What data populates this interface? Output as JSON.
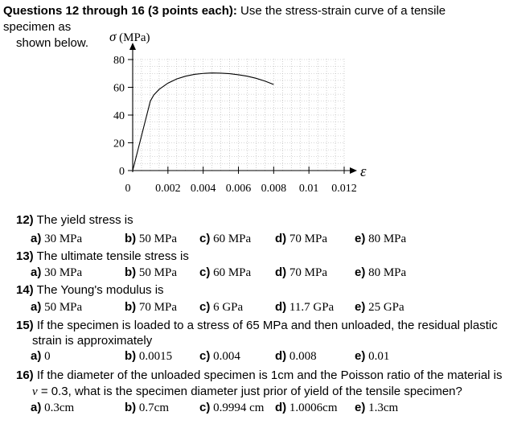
{
  "intro": {
    "bold": "Questions 12 through 16 (3 points each):",
    "rest": " Use the stress-strain curve of a tensile specimen as",
    "line2": "shown below."
  },
  "chart_data": {
    "type": "line",
    "title": "",
    "ylabel": "σ (MPa)",
    "xlabel": "ε",
    "xlim": [
      0,
      0.012
    ],
    "ylim": [
      0,
      80
    ],
    "x_ticks": [
      0,
      0.002,
      0.004,
      0.006,
      0.008,
      0.01,
      0.012
    ],
    "x_tick_labels": [
      "0",
      "0.002",
      "0.004",
      "0.006",
      "0.008",
      "0.01",
      "0.012"
    ],
    "y_ticks": [
      0,
      20,
      40,
      60,
      80
    ],
    "y_tick_labels": [
      "0",
      "20",
      "40",
      "60",
      "80"
    ],
    "grid": true,
    "series": [
      {
        "points": [
          [
            0,
            0
          ],
          [
            0.001,
            50
          ],
          [
            0.0012,
            54.5
          ],
          [
            0.0015,
            58.5
          ],
          [
            0.002,
            63
          ],
          [
            0.0025,
            66
          ],
          [
            0.003,
            68
          ],
          [
            0.0035,
            69.3
          ],
          [
            0.004,
            70
          ],
          [
            0.0045,
            70.3
          ],
          [
            0.005,
            70.2
          ],
          [
            0.0055,
            69.8
          ],
          [
            0.006,
            69
          ],
          [
            0.0065,
            68
          ],
          [
            0.007,
            66.5
          ],
          [
            0.0075,
            64.5
          ],
          [
            0.008,
            62
          ]
        ]
      }
    ]
  },
  "questions": [
    {
      "num": "12)",
      "text": " The yield stress is",
      "options": [
        {
          "label": "a)",
          "value": " 30 MPa"
        },
        {
          "label": "b)",
          "value": " 50 MPa"
        },
        {
          "label": "c)",
          "value": " 60 MPa"
        },
        {
          "label": "d)",
          "value": " 70 MPa"
        },
        {
          "label": "e)",
          "value": " 80 MPa"
        }
      ]
    },
    {
      "num": "13)",
      "text": " The ultimate tensile stress is",
      "options": [
        {
          "label": "a)",
          "value": " 30 MPa"
        },
        {
          "label": "b)",
          "value": " 50 MPa"
        },
        {
          "label": "c)",
          "value": " 60 MPa"
        },
        {
          "label": "d)",
          "value": " 70 MPa"
        },
        {
          "label": "e)",
          "value": " 80 MPa"
        }
      ]
    },
    {
      "num": "14)",
      "text": " The Young's modulus is",
      "options": [
        {
          "label": "a)",
          "value": " 50 MPa"
        },
        {
          "label": "b)",
          "value": " 70 MPa"
        },
        {
          "label": "c)",
          "value": " 6 GPa"
        },
        {
          "label": "d)",
          "value": " 11.7 GPa"
        },
        {
          "label": "e)",
          "value": " 25 GPa"
        }
      ]
    },
    {
      "num": "15)",
      "text": " If the specimen is loaded to a stress of 65 MPa and then unloaded, the residual plastic",
      "text2": "strain is approximately",
      "options": [
        {
          "label": "a)",
          "value": " 0"
        },
        {
          "label": "b)",
          "value": " 0.0015"
        },
        {
          "label": "c)",
          "value": " 0.004"
        },
        {
          "label": "d)",
          "value": " 0.008"
        },
        {
          "label": "e)",
          "value": " 0.01"
        }
      ]
    },
    {
      "num": "16)",
      "text": " If the diameter of the unloaded specimen is 1cm and the Poisson ratio of the material is",
      "text2_nu": "ν",
      "text2": " = 0.3, what is the specimen diameter just prior of yield of the tensile specimen?",
      "options": [
        {
          "label": "a)",
          "value": " 0.3cm"
        },
        {
          "label": "b)",
          "value": " 0.7cm"
        },
        {
          "label": "c)",
          "value": " 0.9994 cm"
        },
        {
          "label": "d)",
          "value": " 1.0006cm"
        },
        {
          "label": "e)",
          "value": " 1.3cm"
        }
      ]
    }
  ]
}
